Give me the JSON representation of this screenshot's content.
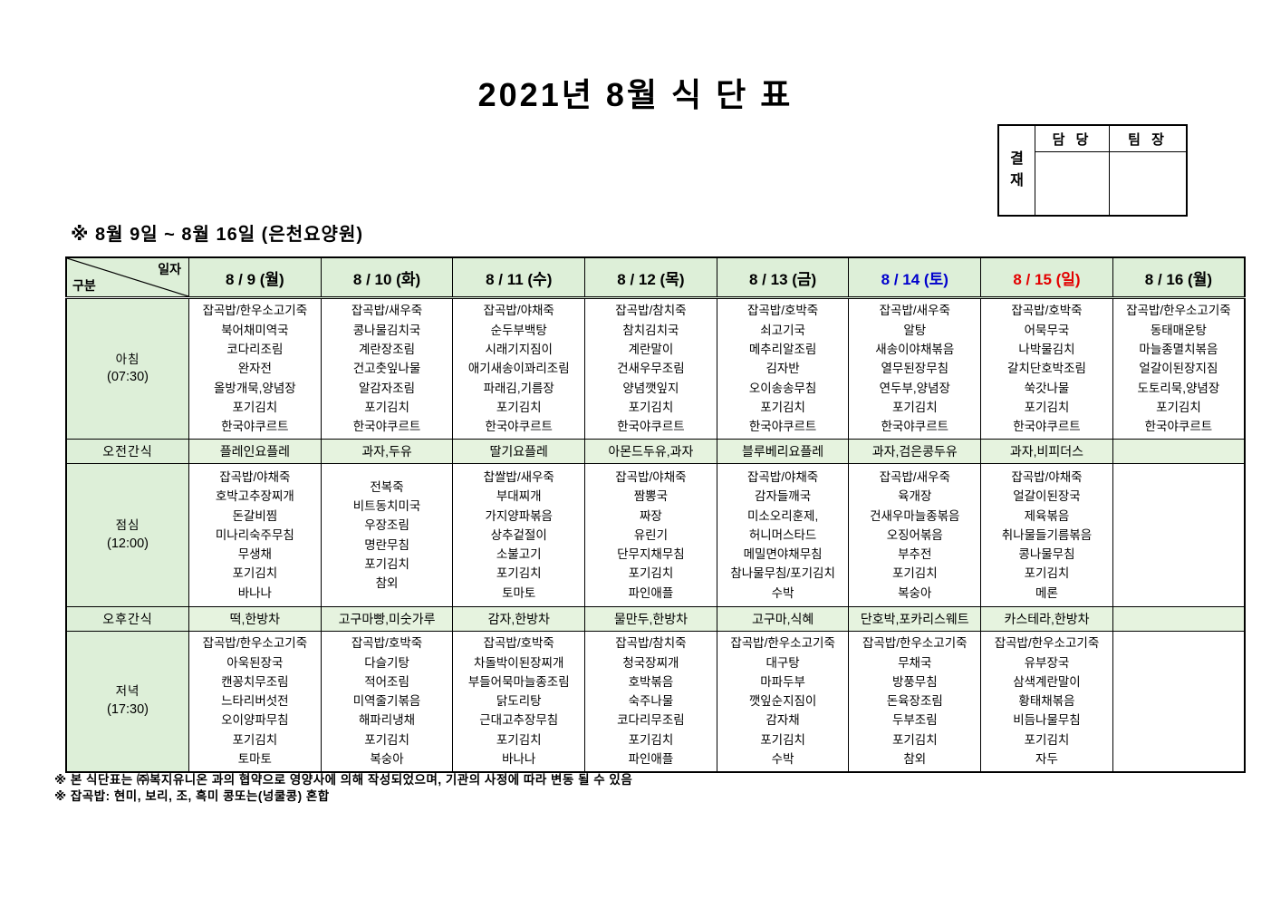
{
  "title": "2021년 8월 식 단 표",
  "subtitle": "※ 8월 9일 ~ 8월 16일 (은천요양원)",
  "approval": {
    "stamp_label": "결재",
    "columns": [
      "담 당",
      "팀 장"
    ]
  },
  "colors": {
    "weekday_date": "#000000",
    "saturday_date": "#0000cd",
    "sunday_date": "#e30000",
    "header_bg": "#ddefd8",
    "label_bg": "#ddefd8",
    "snack_bg": "#e6f3df",
    "meal_bg": "#ffffff"
  },
  "table": {
    "corner": {
      "top_right": "일자",
      "bottom_left": "구분"
    },
    "rows": [
      {
        "key": "breakfast",
        "label": "아침",
        "time": "(07:30)",
        "type": "meal"
      },
      {
        "key": "am_snack",
        "label": "오전간식",
        "time": "",
        "type": "snack"
      },
      {
        "key": "lunch",
        "label": "점심",
        "time": "(12:00)",
        "type": "meal"
      },
      {
        "key": "pm_snack",
        "label": "오후간식",
        "time": "",
        "type": "snack"
      },
      {
        "key": "dinner",
        "label": "저녁",
        "time": "(17:30)",
        "type": "meal"
      }
    ],
    "days": [
      {
        "date": "8 / 9 (월)",
        "color_key": "weekday_date",
        "breakfast": [
          "잡곡밥/한우소고기죽",
          "북어채미역국",
          "코다리조림",
          "완자전",
          "올방개묵,양념장",
          "포기김치",
          "한국야쿠르트"
        ],
        "am_snack": "플레인요플레",
        "lunch": [
          "잡곡밥/야채죽",
          "호박고추장찌개",
          "돈갈비찜",
          "미나리숙주무침",
          "무생채",
          "포기김치",
          "바나나"
        ],
        "pm_snack": "떡,한방차",
        "dinner": [
          "잡곡밥/한우소고기죽",
          "아욱된장국",
          "캔꽁치무조림",
          "느타리버섯전",
          "오이양파무침",
          "포기김치",
          "토마토"
        ]
      },
      {
        "date": "8 / 10 (화)",
        "color_key": "weekday_date",
        "breakfast": [
          "잡곡밥/새우죽",
          "콩나물김치국",
          "계란장조림",
          "건고춧잎나물",
          "알감자조림",
          "포기김치",
          "한국야쿠르트"
        ],
        "am_snack": "과자,두유",
        "lunch": [
          "전복죽",
          "비트동치미국",
          "우장조림",
          "명란무침",
          "포기김치",
          "참외"
        ],
        "pm_snack": "고구마빵,미숫가루",
        "dinner": [
          "잡곡밥/호박죽",
          "다슬기탕",
          "적어조림",
          "미역줄기볶음",
          "해파리냉채",
          "포기김치",
          "복숭아"
        ]
      },
      {
        "date": "8 / 11 (수)",
        "color_key": "weekday_date",
        "breakfast": [
          "잡곡밥/야채죽",
          "순두부백탕",
          "시래기지짐이",
          "애기새송이꽈리조림",
          "파래김,기름장",
          "포기김치",
          "한국야쿠르트"
        ],
        "am_snack": "딸기요플레",
        "lunch": [
          "찹쌀밥/새우죽",
          "부대찌개",
          "가지양파볶음",
          "상추겉절이",
          "소불고기",
          "포기김치",
          "토마토"
        ],
        "pm_snack": "감자,한방차",
        "dinner": [
          "잡곡밥/호박죽",
          "차돌박이된장찌개",
          "부들어묵마늘종조림",
          "닭도리탕",
          "근대고추장무침",
          "포기김치",
          "바나나"
        ]
      },
      {
        "date": "8 / 12 (목)",
        "color_key": "weekday_date",
        "breakfast": [
          "잡곡밥/참치죽",
          "참치김치국",
          "계란말이",
          "건새우무조림",
          "양념깻잎지",
          "포기김치",
          "한국야쿠르트"
        ],
        "am_snack": "아몬드두유,과자",
        "lunch": [
          "잡곡밥/야채죽",
          "짬뽕국",
          "짜장",
          "유린기",
          "단무지채무침",
          "포기김치",
          "파인애플"
        ],
        "pm_snack": "물만두,한방차",
        "dinner": [
          "잡곡밥/참치죽",
          "청국장찌개",
          "호박볶음",
          "숙주나물",
          "코다리무조림",
          "포기김치",
          "파인애플"
        ]
      },
      {
        "date": "8 / 13 (금)",
        "color_key": "weekday_date",
        "breakfast": [
          "잡곡밥/호박죽",
          "쇠고기국",
          "메추리알조림",
          "김자반",
          "오이송송무침",
          "포기김치",
          "한국야쿠르트"
        ],
        "am_snack": "블루베리요플레",
        "lunch": [
          "잡곡밥/야채죽",
          "감자들깨국",
          "미소오리훈제,",
          "허니머스타드",
          "메밀면야채무침",
          "참나물무침/포기김치",
          "수박"
        ],
        "pm_snack": "고구마,식혜",
        "dinner": [
          "잡곡밥/한우소고기죽",
          "대구탕",
          "마파두부",
          "깻잎순지짐이",
          "감자채",
          "포기김치",
          "수박"
        ]
      },
      {
        "date": "8 / 14 (토)",
        "color_key": "saturday_date",
        "breakfast": [
          "잡곡밥/새우죽",
          "알탕",
          "새송이야채볶음",
          "열무된장무침",
          "연두부,양념장",
          "포기김치",
          "한국야쿠르트"
        ],
        "am_snack": "과자,검은콩두유",
        "lunch": [
          "잡곡밥/새우죽",
          "육개장",
          "건새우마늘종볶음",
          "오징어볶음",
          "부추전",
          "포기김치",
          "복숭아"
        ],
        "pm_snack": "단호박,포카리스웨트",
        "dinner": [
          "잡곡밥/한우소고기죽",
          "무채국",
          "방풍무침",
          "돈육장조림",
          "두부조림",
          "포기김치",
          "참외"
        ]
      },
      {
        "date": "8 / 15 (일)",
        "color_key": "sunday_date",
        "breakfast": [
          "잡곡밥/호박죽",
          "어묵무국",
          "나박물김치",
          "갈치단호박조림",
          "쑥갓나물",
          "포기김치",
          "한국야쿠르트"
        ],
        "am_snack": "과자,비피더스",
        "lunch": [
          "잡곡밥/야채죽",
          "얼갈이된장국",
          "제육볶음",
          "취나물들기름볶음",
          "콩나물무침",
          "포기김치",
          "메론"
        ],
        "pm_snack": "카스테라,한방차",
        "dinner": [
          "잡곡밥/한우소고기죽",
          "유부장국",
          "삼색계란말이",
          "황태채볶음",
          "비듬나물무침",
          "포기김치",
          "자두"
        ]
      },
      {
        "date": "8 / 16 (월)",
        "color_key": "weekday_date",
        "breakfast": [
          "잡곡밥/한우소고기죽",
          "동태매운탕",
          "마늘종멸치볶음",
          "얼갈이된장지짐",
          "도토리묵,양념장",
          "포기김치",
          "한국야쿠르트"
        ],
        "am_snack": "",
        "lunch": [],
        "pm_snack": "",
        "dinner": []
      }
    ]
  },
  "notes": [
    "※ 본 식단표는 ㈜복지유니온 과의 협약으로 영양사에 의해 작성되었으며, 기관의 사정에 따라 변동 될 수 있음",
    "※ 잡곡밥: 현미, 보리, 조, 흑미 콩또는(넝쿨콩) 혼합"
  ]
}
